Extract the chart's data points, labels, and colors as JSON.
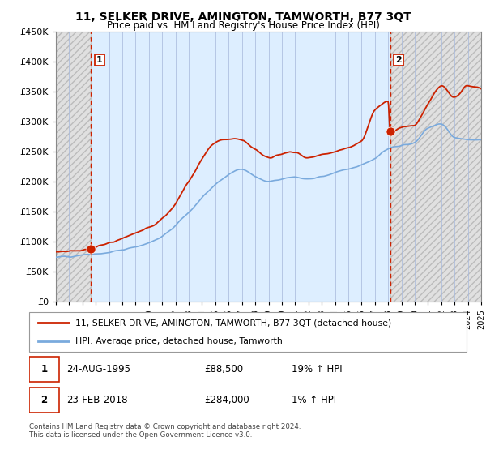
{
  "title": "11, SELKER DRIVE, AMINGTON, TAMWORTH, B77 3QT",
  "subtitle": "Price paid vs. HM Land Registry's House Price Index (HPI)",
  "legend_line1": "11, SELKER DRIVE, AMINGTON, TAMWORTH, B77 3QT (detached house)",
  "legend_line2": "HPI: Average price, detached house, Tamworth",
  "annotation1_date": "24-AUG-1995",
  "annotation1_price": "£88,500",
  "annotation1_hpi": "19% ↑ HPI",
  "annotation2_date": "23-FEB-2018",
  "annotation2_price": "£284,000",
  "annotation2_hpi": "1% ↑ HPI",
  "footer": "Contains HM Land Registry data © Crown copyright and database right 2024.\nThis data is licensed under the Open Government Licence v3.0.",
  "hpi_color": "#7aaadd",
  "price_color": "#cc2200",
  "dot_color": "#cc2200",
  "hatch_color": "#cccccc",
  "grid_color": "#aabbdd",
  "bg_color": "#ddeeff",
  "ylim": [
    0,
    450000
  ],
  "yticks": [
    0,
    50000,
    100000,
    150000,
    200000,
    250000,
    300000,
    350000,
    400000,
    450000
  ],
  "sale1_year": 1995.65,
  "sale1_price": 88500,
  "sale2_year": 2018.15,
  "sale2_price": 284000,
  "xmin": 1993,
  "xmax": 2025
}
